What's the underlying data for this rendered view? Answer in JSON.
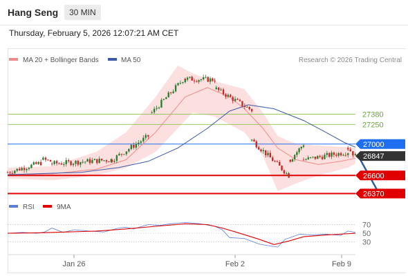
{
  "header": {
    "title": "Hang Seng",
    "interval": "30 MIN"
  },
  "timestamp": "Thursday, February 5, 2026 12:07:21 AM CET",
  "copyright": "Research © 2026 Trading Central",
  "colors": {
    "up": "#2e7d32",
    "down": "#c62828",
    "ma20": "#f08a8a",
    "ma50": "#3c5aa8",
    "band_fill": "#fbd9d9",
    "support": "#e00000",
    "resistance": "#8bc34a",
    "pivot": "#1e6ff0",
    "price_tag": "#333333",
    "arrow": "#2f5a9c",
    "rsi": "#5b7fd6",
    "rsi_ma": "#e00000"
  },
  "chart_data": [
    {
      "type": "line",
      "title": "Hang Seng",
      "legend": [
        {
          "name": "MA 20 + Bollinger Bands",
          "color": "#f08a8a"
        },
        {
          "name": "MA 50",
          "color": "#3c5aa8"
        }
      ],
      "x_ticks": [
        "Jan 26",
        "Feb 2",
        "Feb 9"
      ],
      "levels": [
        {
          "label": "27380",
          "value": 27380,
          "kind": "resistance"
        },
        {
          "label": "27250",
          "value": 27250,
          "kind": "resistance"
        },
        {
          "label": "27000",
          "value": 27000,
          "kind": "pivot"
        },
        {
          "label": "26847",
          "value": 26847,
          "kind": "last"
        },
        {
          "label": "26600",
          "value": 26600,
          "kind": "support"
        },
        {
          "label": "26370",
          "value": 26370,
          "kind": "support"
        }
      ],
      "ylim": [
        26330,
        28000
      ],
      "segments": [
        {
          "x": [
            0,
            45
          ],
          "y": [
            26640,
            26760
          ]
        },
        {
          "x": [
            48,
            58
          ],
          "y": [
            26800,
            26780
          ]
        },
        {
          "x": [
            60,
            140
          ],
          "y": [
            26750,
            26800
          ]
        },
        {
          "x": [
            141,
            190
          ],
          "y": [
            26800,
            27100
          ]
        },
        {
          "x": [
            195,
            240
          ],
          "y": [
            27400,
            27850
          ]
        },
        {
          "x": [
            240,
            280
          ],
          "y": [
            27830,
            27820
          ]
        },
        {
          "x": [
            282,
            330
          ],
          "y": [
            27700,
            27430
          ]
        },
        {
          "x": [
            330,
            380
          ],
          "y": [
            27050,
            26600
          ]
        },
        {
          "x": [
            382,
            400
          ],
          "y": [
            26800,
            27000
          ]
        },
        {
          "x": [
            400,
            460
          ],
          "y": [
            26800,
            26900
          ]
        },
        {
          "x": [
            460,
            470
          ],
          "y": [
            26950,
            26847
          ]
        }
      ],
      "ma20": {
        "x": [
          0,
          60,
          120,
          160,
          200,
          240,
          270,
          300,
          320,
          345,
          365,
          390,
          420,
          450,
          470
        ],
        "y": [
          26610,
          26620,
          26680,
          26800,
          27150,
          27600,
          27720,
          27600,
          27450,
          27200,
          26950,
          26800,
          26740,
          26780,
          26820
        ]
      },
      "ma50": {
        "x": [
          0,
          100,
          150,
          190,
          230,
          270,
          300,
          325,
          360,
          400,
          430,
          455,
          470
        ],
        "y": [
          26610,
          26640,
          26700,
          26780,
          26950,
          27200,
          27420,
          27500,
          27450,
          27300,
          27150,
          27020,
          26960
        ]
      },
      "bollinger": {
        "x": [
          0,
          60,
          120,
          160,
          200,
          230,
          250,
          280,
          320,
          345,
          365,
          390,
          420,
          460,
          470
        ],
        "upper": [
          26700,
          26720,
          26900,
          27150,
          27600,
          28000,
          27900,
          27800,
          27700,
          27400,
          27100,
          27000,
          26980,
          26960,
          26950
        ],
        "lower": [
          26560,
          26540,
          26600,
          26700,
          26900,
          27200,
          27400,
          27350,
          27150,
          26850,
          26400,
          26500,
          26600,
          26700,
          26750
        ]
      },
      "forecast_arrow": {
        "from": {
          "x": 474,
          "y": 26847
        },
        "to": {
          "x": 502,
          "y": 26370
        }
      }
    },
    {
      "type": "line",
      "title": "RSI",
      "legend": [
        {
          "name": "RSI",
          "color": "#5b7fd6"
        },
        {
          "name": "9MA",
          "color": "#e00000"
        }
      ],
      "y_ticks": [
        "70",
        "50",
        "30"
      ],
      "ylim": [
        15,
        82
      ],
      "series": [
        {
          "name": "RSI",
          "x": [
            0,
            20,
            40,
            50,
            60,
            75,
            90,
            110,
            130,
            150,
            160,
            170,
            190,
            205,
            220,
            240,
            260,
            280,
            290,
            300,
            320,
            340,
            350,
            365,
            375,
            385,
            395,
            410,
            430,
            450,
            460,
            470
          ],
          "y": [
            50,
            52,
            50,
            53,
            62,
            52,
            58,
            55,
            53,
            62,
            64,
            60,
            70,
            68,
            72,
            75,
            72,
            66,
            58,
            40,
            38,
            25,
            22,
            18,
            36,
            42,
            48,
            46,
            48,
            45,
            55,
            52
          ]
        },
        {
          "name": "9MA",
          "x": [
            0,
            40,
            80,
            120,
            160,
            200,
            240,
            270,
            290,
            310,
            340,
            360,
            380,
            400,
            430,
            470
          ],
          "y": [
            50,
            51,
            53,
            55,
            60,
            66,
            72,
            70,
            62,
            52,
            36,
            24,
            32,
            42,
            46,
            50
          ]
        }
      ]
    }
  ]
}
